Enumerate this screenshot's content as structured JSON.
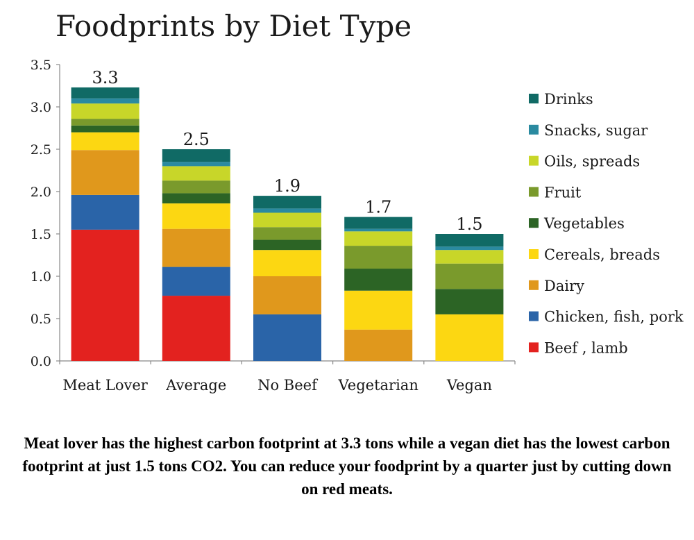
{
  "chart_data": {
    "type": "bar",
    "stacked": true,
    "title": "Foodprints by Diet Type",
    "xlabel": "",
    "ylabel": "",
    "ylim": [
      0,
      3.5
    ],
    "yticks": [
      "0.0",
      "0.5",
      "1.0",
      "1.5",
      "2.0",
      "2.5",
      "3.0",
      "3.5"
    ],
    "grid": false,
    "legend_position": "right",
    "categories": [
      "Meat Lover",
      "Average",
      "No Beef",
      "Vegetarian",
      "Vegan"
    ],
    "totals": [
      "3.3",
      "2.5",
      "1.9",
      "1.7",
      "1.5"
    ],
    "series": [
      {
        "name": "Beef , lamb",
        "color": "#e3221f",
        "values": [
          1.55,
          0.77,
          0,
          0,
          0
        ]
      },
      {
        "name": "Chicken, fish, pork",
        "color": "#2a64a8",
        "values": [
          0.41,
          0.34,
          0.55,
          0,
          0
        ]
      },
      {
        "name": "Dairy",
        "color": "#e0981c",
        "values": [
          0.53,
          0.45,
          0.45,
          0.37,
          0
        ]
      },
      {
        "name": "Cereals, breads",
        "color": "#fcd712",
        "values": [
          0.21,
          0.3,
          0.31,
          0.46,
          0.55
        ]
      },
      {
        "name": "Vegetables",
        "color": "#2c6425",
        "values": [
          0.08,
          0.12,
          0.12,
          0.26,
          0.3
        ]
      },
      {
        "name": "Fruit",
        "color": "#7a9a2c",
        "values": [
          0.08,
          0.15,
          0.15,
          0.27,
          0.3
        ]
      },
      {
        "name": "Oils, spreads",
        "color": "#c8d629",
        "values": [
          0.18,
          0.17,
          0.17,
          0.17,
          0.16
        ]
      },
      {
        "name": "Snacks, sugar",
        "color": "#2a8aa0",
        "values": [
          0.06,
          0.05,
          0.05,
          0.03,
          0.04
        ]
      },
      {
        "name": "Drinks",
        "color": "#106a65",
        "values": [
          0.13,
          0.15,
          0.15,
          0.14,
          0.15
        ]
      }
    ]
  },
  "caption": "Meat lover has the highest carbon footprint at 3.3 tons while a vegan diet has the lowest carbon footprint at just 1.5 tons CO2. You can reduce your foodprint by a quarter just by cutting down on red meats."
}
